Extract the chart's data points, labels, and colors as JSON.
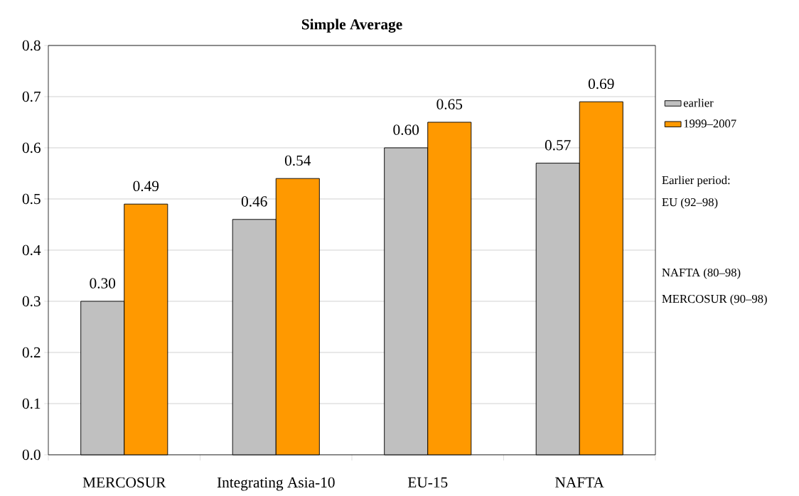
{
  "chart_data": {
    "type": "bar",
    "title": "Simple Average",
    "categories": [
      "MERCOSUR",
      "Integrating Asia-10",
      "EU-15",
      "NAFTA"
    ],
    "series": [
      {
        "name": "earlier",
        "color": "#c0c0c0",
        "values": [
          0.3,
          0.46,
          0.6,
          0.57
        ],
        "value_labels": [
          "0.30",
          "0.46",
          "0.60",
          "0.57"
        ]
      },
      {
        "name": "1999–2007",
        "color": "#ff9900",
        "values": [
          0.49,
          0.54,
          0.65,
          0.69
        ],
        "value_labels": [
          "0.49",
          "0.54",
          "0.65",
          "0.69"
        ]
      }
    ],
    "ylim": [
      0,
      0.8
    ],
    "yticks": [
      {
        "value": 0,
        "label": "0.0"
      },
      {
        "value": 0.1,
        "label": "0.1"
      },
      {
        "value": 0.2,
        "label": "0.2"
      },
      {
        "value": 0.3,
        "label": "0.3"
      },
      {
        "value": 0.4,
        "label": "0.4"
      },
      {
        "value": 0.5,
        "label": "0.5"
      },
      {
        "value": 0.6,
        "label": "0.6"
      },
      {
        "value": 0.7,
        "label": "0.7"
      },
      {
        "value": 0.8,
        "label": "0.8"
      }
    ],
    "grid": "y",
    "legend": "top right",
    "annotations": [
      "Earlier period:",
      "EU (92–98)",
      "NAFTA (80–98)",
      "MERCOSUR (90–98)"
    ]
  }
}
